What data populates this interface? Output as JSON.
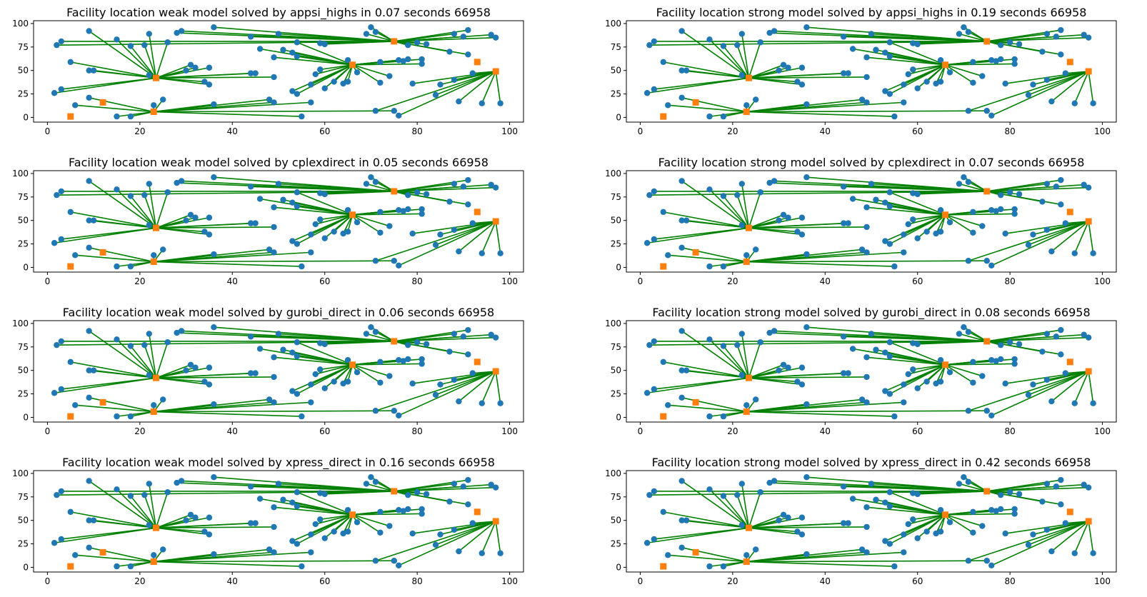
{
  "figure": {
    "background": "#ffffff",
    "colors": {
      "customer": "#1f77b4",
      "facility": "#ff7f0e",
      "assignment": "#008000",
      "axis": "#000000"
    }
  },
  "chart_data": [
    {
      "type": "scatter",
      "title": "Facility location weak model solved by appsi_highs in 0.07 seconds 66958",
      "xlim": [
        -3,
        103
      ],
      "ylim": [
        -5,
        103
      ],
      "xticks": [
        0,
        20,
        40,
        60,
        80,
        100
      ],
      "yticks": [
        0,
        25,
        50,
        75,
        100
      ],
      "facility_set": "weak"
    },
    {
      "type": "scatter",
      "title": "Facility location strong model solved by appsi_highs in 0.19 seconds 66958",
      "xlim": [
        -3,
        103
      ],
      "ylim": [
        -5,
        103
      ],
      "xticks": [
        0,
        20,
        40,
        60,
        80,
        100
      ],
      "yticks": [
        0,
        25,
        50,
        75,
        100
      ],
      "facility_set": "strong"
    },
    {
      "type": "scatter",
      "title": "Facility location weak model solved by cplexdirect in 0.05 seconds 66958",
      "xlim": [
        -3,
        103
      ],
      "ylim": [
        -5,
        103
      ],
      "xticks": [
        0,
        20,
        40,
        60,
        80,
        100
      ],
      "yticks": [
        0,
        25,
        50,
        75,
        100
      ],
      "facility_set": "weak"
    },
    {
      "type": "scatter",
      "title": "Facility location strong model solved by cplexdirect in 0.07 seconds 66958",
      "xlim": [
        -3,
        103
      ],
      "ylim": [
        -5,
        103
      ],
      "xticks": [
        0,
        20,
        40,
        60,
        80,
        100
      ],
      "yticks": [
        0,
        25,
        50,
        75,
        100
      ],
      "facility_set": "strong"
    },
    {
      "type": "scatter",
      "title": "Facility location weak model solved by gurobi_direct in 0.06 seconds 66958",
      "xlim": [
        -3,
        103
      ],
      "ylim": [
        -5,
        103
      ],
      "xticks": [
        0,
        20,
        40,
        60,
        80,
        100
      ],
      "yticks": [
        0,
        25,
        50,
        75,
        100
      ],
      "facility_set": "weak"
    },
    {
      "type": "scatter",
      "title": "Facility location strong model solved by gurobi_direct in 0.08 seconds 66958",
      "xlim": [
        -3,
        103
      ],
      "ylim": [
        -5,
        103
      ],
      "xticks": [
        0,
        20,
        40,
        60,
        80,
        100
      ],
      "yticks": [
        0,
        25,
        50,
        75,
        100
      ],
      "facility_set": "strong"
    },
    {
      "type": "scatter",
      "title": "Facility location weak model solved by xpress_direct in 0.16 seconds 66958",
      "xlim": [
        -3,
        103
      ],
      "ylim": [
        -5,
        103
      ],
      "xticks": [
        0,
        20,
        40,
        60,
        80,
        100
      ],
      "yticks": [
        0,
        25,
        50,
        75,
        100
      ],
      "facility_set": "weak"
    },
    {
      "type": "scatter",
      "title": "Facility location strong model solved by xpress_direct in 0.42 seconds 66958",
      "xlim": [
        -3,
        103
      ],
      "ylim": [
        -5,
        103
      ],
      "xticks": [
        0,
        20,
        40,
        60,
        80,
        100
      ],
      "yticks": [
        0,
        25,
        50,
        75,
        100
      ],
      "facility_set": "strong"
    }
  ],
  "facility_sets": {
    "weak": [
      [
        23.5,
        42
      ],
      [
        66,
        56
      ],
      [
        75,
        81
      ],
      [
        97,
        49
      ],
      [
        23,
        6
      ],
      [
        93,
        59
      ],
      [
        12,
        16
      ],
      [
        5,
        1
      ]
    ],
    "strong": [
      [
        23.5,
        42
      ],
      [
        66,
        56
      ],
      [
        75,
        81
      ],
      [
        97,
        49
      ],
      [
        23,
        6
      ],
      [
        93,
        59
      ],
      [
        12,
        16
      ],
      [
        5,
        1
      ]
    ]
  },
  "customers": [
    [
      2,
      77
    ],
    [
      3,
      81
    ],
    [
      1.5,
      26
    ],
    [
      3,
      30
    ],
    [
      5,
      59
    ],
    [
      9,
      50
    ],
    [
      10,
      50
    ],
    [
      9,
      92
    ],
    [
      15,
      83
    ],
    [
      18,
      76
    ],
    [
      21,
      77
    ],
    [
      22,
      89
    ],
    [
      26,
      80
    ],
    [
      22,
      45
    ],
    [
      30,
      50
    ],
    [
      31,
      56
    ],
    [
      32,
      53
    ],
    [
      34,
      38
    ],
    [
      35,
      35
    ],
    [
      35,
      53
    ],
    [
      28,
      90
    ],
    [
      29,
      92
    ],
    [
      36,
      96
    ],
    [
      44,
      86
    ],
    [
      44,
      47
    ],
    [
      45,
      47
    ],
    [
      50,
      89
    ],
    [
      46,
      73
    ],
    [
      49,
      64
    ],
    [
      49,
      43
    ],
    [
      51,
      72
    ],
    [
      53,
      69
    ],
    [
      54,
      80
    ],
    [
      54,
      65
    ],
    [
      53,
      28
    ],
    [
      54,
      25
    ],
    [
      57,
      35
    ],
    [
      58,
      46
    ],
    [
      59,
      79
    ],
    [
      60,
      78
    ],
    [
      59,
      51
    ],
    [
      60,
      31
    ],
    [
      62,
      38
    ],
    [
      65,
      61
    ],
    [
      64,
      36
    ],
    [
      65,
      38
    ],
    [
      67,
      48
    ],
    [
      69,
      89
    ],
    [
      70,
      96
    ],
    [
      71,
      91
    ],
    [
      72,
      59
    ],
    [
      72,
      37
    ],
    [
      74,
      44
    ],
    [
      76,
      61
    ],
    [
      77,
      60
    ],
    [
      78,
      62
    ],
    [
      78,
      77
    ],
    [
      79,
      36
    ],
    [
      80,
      80
    ],
    [
      81,
      62
    ],
    [
      81,
      57
    ],
    [
      82,
      78
    ],
    [
      87,
      70
    ],
    [
      88,
      89
    ],
    [
      90,
      86
    ],
    [
      91,
      93
    ],
    [
      91,
      67
    ],
    [
      96,
      88
    ],
    [
      97,
      85
    ],
    [
      92,
      47
    ],
    [
      88,
      40
    ],
    [
      85,
      35
    ],
    [
      84,
      24
    ],
    [
      89,
      17
    ],
    [
      94,
      15
    ],
    [
      98,
      15
    ],
    [
      9,
      21
    ],
    [
      6,
      13
    ],
    [
      15,
      1
    ],
    [
      18,
      1
    ],
    [
      23,
      13
    ],
    [
      25,
      19
    ],
    [
      36,
      14
    ],
    [
      48,
      19
    ],
    [
      49,
      16
    ],
    [
      57,
      16
    ],
    [
      71,
      7
    ],
    [
      75,
      7
    ],
    [
      76,
      2
    ],
    [
      55,
      1
    ]
  ],
  "assignments": [
    [
      2,
      0
    ],
    [
      3,
      0
    ],
    [
      4,
      0
    ],
    [
      5,
      0
    ],
    [
      6,
      0
    ],
    [
      7,
      0
    ],
    [
      8,
      0
    ],
    [
      9,
      0
    ],
    [
      10,
      0
    ],
    [
      11,
      0
    ],
    [
      12,
      0
    ],
    [
      13,
      0
    ],
    [
      14,
      0
    ],
    [
      15,
      0
    ],
    [
      16,
      0
    ],
    [
      17,
      0
    ],
    [
      18,
      0
    ],
    [
      19,
      0
    ],
    [
      24,
      0
    ],
    [
      25,
      0
    ],
    [
      29,
      0
    ],
    [
      27,
      1
    ],
    [
      28,
      1
    ],
    [
      30,
      1
    ],
    [
      31,
      1
    ],
    [
      32,
      1
    ],
    [
      33,
      1
    ],
    [
      34,
      1
    ],
    [
      35,
      1
    ],
    [
      36,
      1
    ],
    [
      37,
      1
    ],
    [
      40,
      1
    ],
    [
      41,
      1
    ],
    [
      42,
      1
    ],
    [
      43,
      1
    ],
    [
      44,
      1
    ],
    [
      45,
      1
    ],
    [
      46,
      1
    ],
    [
      50,
      1
    ],
    [
      51,
      1
    ],
    [
      52,
      1
    ],
    [
      53,
      1
    ],
    [
      54,
      1
    ],
    [
      55,
      1
    ],
    [
      59,
      1
    ],
    [
      60,
      1
    ],
    [
      0,
      2
    ],
    [
      1,
      2
    ],
    [
      20,
      2
    ],
    [
      21,
      2
    ],
    [
      22,
      2
    ],
    [
      23,
      2
    ],
    [
      26,
      2
    ],
    [
      38,
      2
    ],
    [
      39,
      2
    ],
    [
      47,
      2
    ],
    [
      48,
      2
    ],
    [
      49,
      2
    ],
    [
      56,
      2
    ],
    [
      58,
      2
    ],
    [
      61,
      2
    ],
    [
      62,
      2
    ],
    [
      63,
      2
    ],
    [
      64,
      2
    ],
    [
      65,
      2
    ],
    [
      66,
      2
    ],
    [
      67,
      2
    ],
    [
      68,
      2
    ],
    [
      69,
      3
    ],
    [
      70,
      3
    ],
    [
      71,
      3
    ],
    [
      72,
      3
    ],
    [
      73,
      3
    ],
    [
      74,
      3
    ],
    [
      75,
      3
    ],
    [
      57,
      3
    ],
    [
      86,
      3
    ],
    [
      88,
      3
    ],
    [
      76,
      4
    ],
    [
      77,
      4
    ],
    [
      78,
      4
    ],
    [
      79,
      4
    ],
    [
      80,
      4
    ],
    [
      81,
      4
    ],
    [
      82,
      4
    ],
    [
      83,
      4
    ],
    [
      84,
      4
    ],
    [
      85,
      4
    ],
    [
      87,
      4
    ],
    [
      89,
      4
    ]
  ]
}
